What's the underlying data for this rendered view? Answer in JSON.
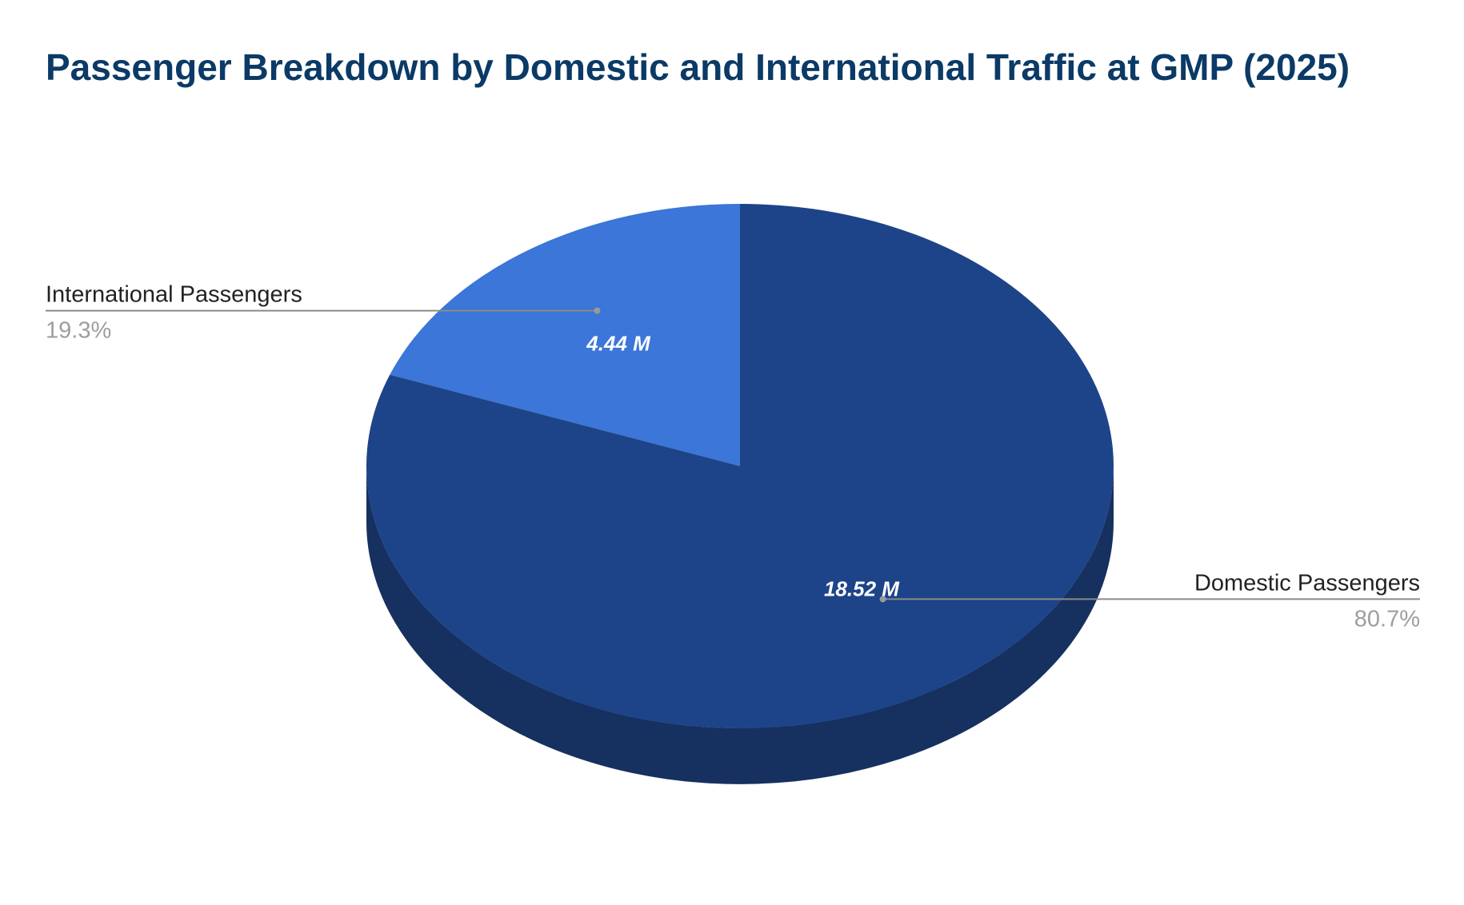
{
  "colors": {
    "title": "#0b3a66",
    "callout_line": "#8a8a8a",
    "background": "#ffffff"
  },
  "chart_data": {
    "type": "pie",
    "style": "3d",
    "title": "Passenger Breakdown by Domestic and International Traffic at GMP (2025)",
    "unit": "M",
    "slices": [
      {
        "name": "International Passengers",
        "value": 4.44,
        "value_label": "4.44 M",
        "percent": 19.3,
        "percent_label": "19.3%",
        "color": "#3b76d8",
        "side_color": "#2a56a3"
      },
      {
        "name": "Domestic Passengers",
        "value": 18.52,
        "value_label": "18.52 M",
        "percent": 80.7,
        "percent_label": "80.7%",
        "color": "#1d4488",
        "side_color": "#16305f"
      }
    ],
    "legend": "callouts"
  }
}
